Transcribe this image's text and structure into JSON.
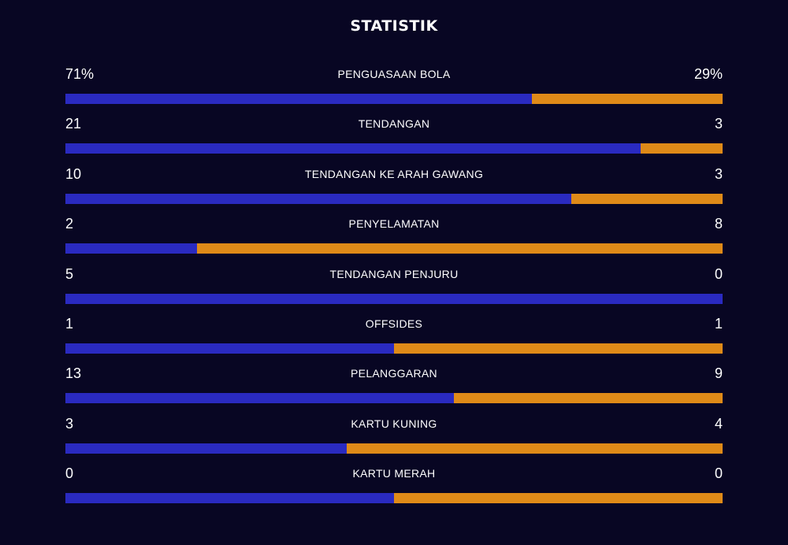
{
  "title": "STATISTIK",
  "colors": {
    "home": "#2a2ac0",
    "away": "#df8a18",
    "background": "#080623"
  },
  "stats": [
    {
      "label": "PENGUASAAN BOLA",
      "home": "71%",
      "away": "29%",
      "home_value": 71,
      "away_value": 29
    },
    {
      "label": "TENDANGAN",
      "home": "21",
      "away": "3",
      "home_value": 21,
      "away_value": 3
    },
    {
      "label": "TENDANGAN KE ARAH GAWANG",
      "home": "10",
      "away": "3",
      "home_value": 10,
      "away_value": 3
    },
    {
      "label": "PENYELAMATAN",
      "home": "2",
      "away": "8",
      "home_value": 2,
      "away_value": 8
    },
    {
      "label": "TENDANGAN PENJURU",
      "home": "5",
      "away": "0",
      "home_value": 5,
      "away_value": 0
    },
    {
      "label": "OFFSIDES",
      "home": "1",
      "away": "1",
      "home_value": 1,
      "away_value": 1
    },
    {
      "label": "PELANGGARAN",
      "home": "13",
      "away": "9",
      "home_value": 13,
      "away_value": 9
    },
    {
      "label": "KARTU KUNING",
      "home": "3",
      "away": "4",
      "home_value": 3,
      "away_value": 4
    },
    {
      "label": "KARTU MERAH",
      "home": "0",
      "away": "0",
      "home_value": 0,
      "away_value": 0
    }
  ]
}
